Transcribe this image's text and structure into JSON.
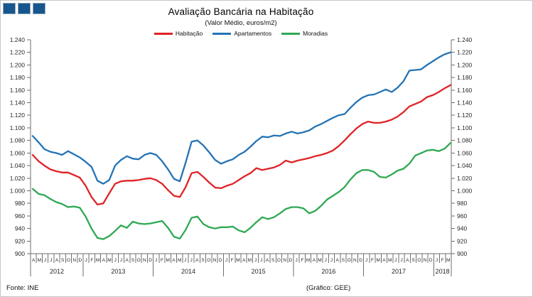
{
  "header": {
    "title": "Avaliação Bancária na Habitação",
    "subtitle": "(Valor Médio, euros/m2)"
  },
  "legend": [
    {
      "label": "Habitação",
      "color": "#e02227"
    },
    {
      "label": "Apartamentos",
      "color": "#2473b5"
    },
    {
      "label": "Moradias",
      "color": "#2ea853"
    }
  ],
  "footer": {
    "source": "Fonte: INE",
    "credit": "(Gráfico:  GEE)"
  },
  "colors": {
    "axis": "#6e6e6e",
    "tick_text": "#262626",
    "logo_square": "#17568f"
  },
  "chart_data": {
    "type": "line",
    "title": "Avaliação Bancária na Habitação",
    "subtitle": "(Valor Médio, euros/m2)",
    "ylabel": "euros/m2",
    "ylim": [
      900,
      1240
    ],
    "ytick_step": 20,
    "grid": false,
    "legend_position": "top",
    "x_months": [
      "A",
      "M",
      "J",
      "J",
      "A",
      "S",
      "O",
      "N",
      "D",
      "J",
      "F",
      "M",
      "A",
      "M",
      "J",
      "J",
      "A",
      "S",
      "O",
      "N",
      "D",
      "J",
      "F",
      "M",
      "A",
      "M",
      "J",
      "J",
      "A",
      "S",
      "O",
      "N",
      "D",
      "J",
      "F",
      "M",
      "A",
      "M",
      "J",
      "J",
      "A",
      "S",
      "O",
      "N",
      "D",
      "J",
      "F",
      "M",
      "A",
      "M",
      "J",
      "J",
      "A",
      "S",
      "O",
      "N",
      "D",
      "J",
      "F",
      "M",
      "A",
      "M",
      "J",
      "J",
      "A",
      "S",
      "O",
      "N",
      "D",
      "J",
      "F",
      "M"
    ],
    "years": [
      {
        "label": "2012",
        "months": 9
      },
      {
        "label": "2013",
        "months": 12
      },
      {
        "label": "2014",
        "months": 12
      },
      {
        "label": "2015",
        "months": 12
      },
      {
        "label": "2016",
        "months": 12
      },
      {
        "label": "2017",
        "months": 12
      },
      {
        "label": "2018",
        "months": 3
      }
    ],
    "series": [
      {
        "name": "Habitação",
        "color": "#e02227",
        "values": [
          1057,
          1047,
          1040,
          1034,
          1031,
          1029,
          1029,
          1025,
          1021,
          1008,
          990,
          978,
          980,
          996,
          1011,
          1015,
          1016,
          1016,
          1017,
          1019,
          1020,
          1017,
          1011,
          1001,
          992,
          990,
          1006,
          1028,
          1030,
          1022,
          1013,
          1005,
          1004,
          1008,
          1011,
          1017,
          1023,
          1028,
          1036,
          1033,
          1035,
          1037,
          1041,
          1048,
          1045,
          1048,
          1050,
          1052,
          1055,
          1057,
          1060,
          1064,
          1071,
          1080,
          1090,
          1099,
          1106,
          1110,
          1108,
          1108,
          1110,
          1113,
          1118,
          1125,
          1134,
          1138,
          1142,
          1149,
          1152,
          1157,
          1163,
          1168
        ]
      },
      {
        "name": "Apartamentos",
        "color": "#2473b5",
        "values": [
          1087,
          1077,
          1066,
          1062,
          1060,
          1057,
          1063,
          1058,
          1053,
          1046,
          1038,
          1016,
          1011,
          1017,
          1040,
          1049,
          1055,
          1051,
          1050,
          1057,
          1060,
          1057,
          1047,
          1034,
          1019,
          1015,
          1045,
          1078,
          1080,
          1072,
          1061,
          1049,
          1043,
          1047,
          1050,
          1057,
          1062,
          1070,
          1079,
          1086,
          1085,
          1088,
          1087,
          1091,
          1094,
          1091,
          1093,
          1096,
          1102,
          1106,
          1111,
          1116,
          1120,
          1122,
          1132,
          1141,
          1148,
          1152,
          1153,
          1157,
          1161,
          1157,
          1164,
          1174,
          1191,
          1192,
          1193,
          1200,
          1206,
          1212,
          1217,
          1220
        ]
      },
      {
        "name": "Moradias",
        "color": "#2ea853",
        "values": [
          1003,
          995,
          993,
          987,
          982,
          979,
          974,
          975,
          973,
          959,
          940,
          925,
          923,
          928,
          936,
          945,
          941,
          951,
          948,
          947,
          948,
          950,
          952,
          941,
          927,
          924,
          938,
          957,
          959,
          947,
          942,
          940,
          942,
          942,
          943,
          937,
          934,
          941,
          950,
          958,
          955,
          958,
          964,
          971,
          974,
          974,
          972,
          964,
          968,
          976,
          986,
          992,
          998,
          1006,
          1018,
          1028,
          1033,
          1033,
          1030,
          1022,
          1021,
          1026,
          1032,
          1035,
          1043,
          1056,
          1060,
          1064,
          1065,
          1063,
          1067,
          1076
        ]
      }
    ]
  }
}
